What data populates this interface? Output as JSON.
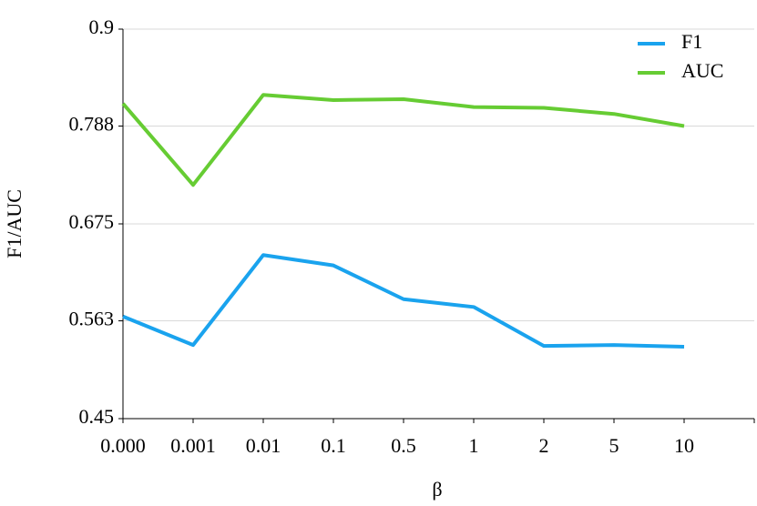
{
  "chart_data": {
    "type": "line",
    "x_label": "β",
    "y_label": "F1/AUC",
    "categories": [
      "0.000",
      "0.001",
      "0.01",
      "0.1",
      "0.5",
      "1",
      "2",
      "5",
      "10"
    ],
    "series": [
      {
        "name": "F1",
        "color": "#1aa3ee",
        "values": [
          0.568,
          0.535,
          0.639,
          0.627,
          0.588,
          0.579,
          0.534,
          0.535,
          0.533
        ]
      },
      {
        "name": "AUC",
        "color": "#66cc33",
        "values": [
          0.814,
          0.72,
          0.824,
          0.818,
          0.819,
          0.81,
          0.809,
          0.802,
          0.788
        ]
      }
    ],
    "ylim": [
      0.45,
      0.9
    ],
    "yticks": [
      0.45,
      0.563,
      0.675,
      0.788,
      0.9
    ],
    "grid": true,
    "legend": "upper right"
  }
}
